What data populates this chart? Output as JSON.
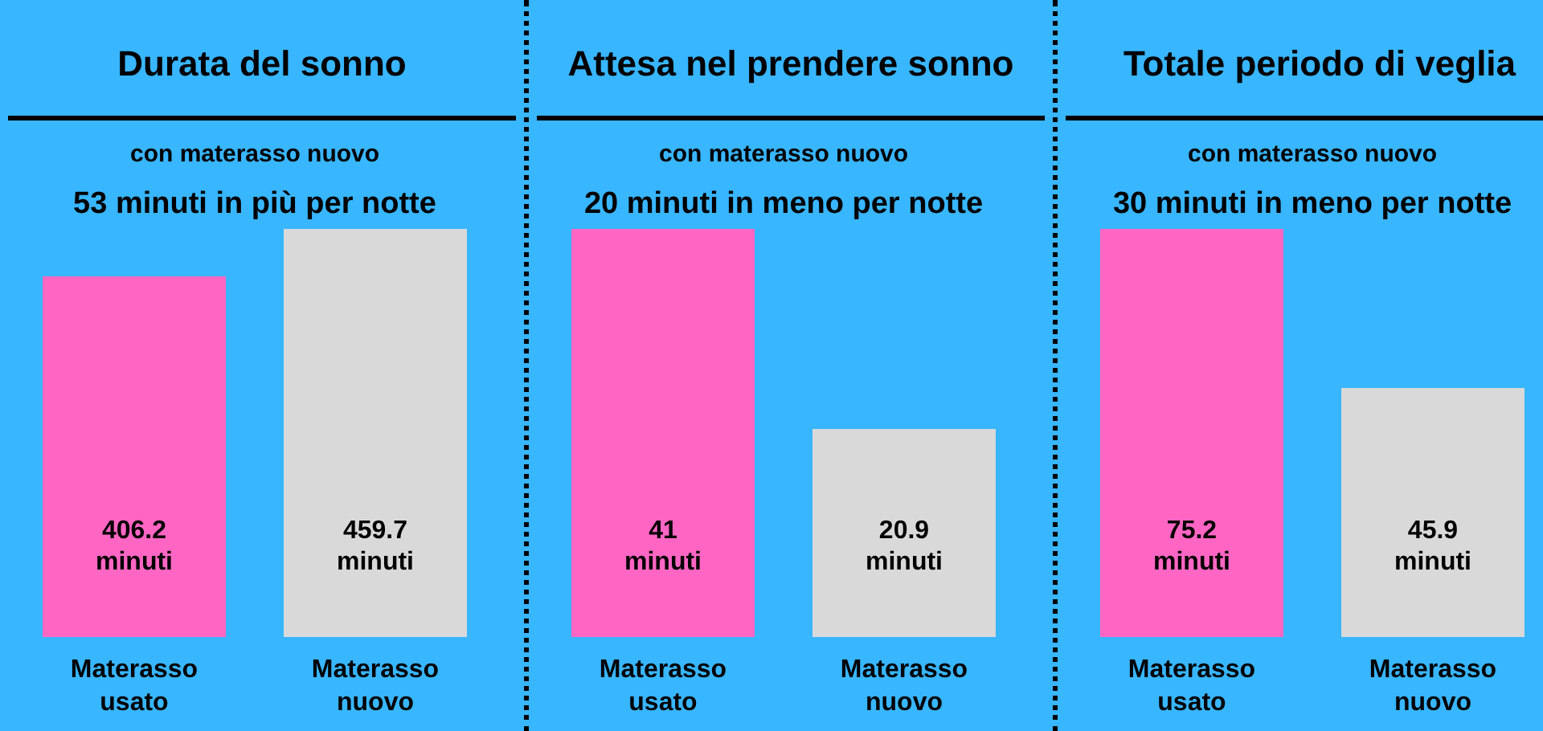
{
  "chart_data": [
    {
      "type": "bar",
      "title": "Durata del sonno",
      "subtitle": "con materasso nuovo",
      "annotations": [
        "53 minuti in più per notte"
      ],
      "categories": [
        "Materasso\nusato",
        "Materasso\nnuovo"
      ],
      "values": [
        406.2,
        459.7
      ],
      "colors": [
        "#ff66c4",
        "#d9d9d9"
      ],
      "value_labels": [
        "406.2\nminuti",
        "459.7\nminuti"
      ],
      "tick_labels": "x"
    },
    {
      "type": "bar",
      "title": "Attesa nel prendere sonno",
      "subtitle": "con materasso nuovo",
      "annotations": [
        "20 minuti in meno per notte"
      ],
      "categories": [
        "Materasso\nusato",
        "Materasso\nnuovo"
      ],
      "values": [
        41,
        20.9
      ],
      "colors": [
        "#ff66c4",
        "#d9d9d9"
      ],
      "value_labels": [
        "41\nminuti",
        "20.9\nminuti"
      ],
      "tick_labels": "x"
    },
    {
      "type": "bar",
      "title": "Totale periodo di veglia",
      "subtitle": "con materasso nuovo",
      "annotations": [
        "30 minuti in meno per notte"
      ],
      "categories": [
        "Materasso\nusato",
        "Materasso\nnuovo"
      ],
      "values": [
        75.2,
        45.9
      ],
      "colors": [
        "#ff66c4",
        "#d9d9d9"
      ],
      "value_labels": [
        "75.2\nminuti",
        "45.9\nminuti"
      ],
      "tick_labels": "x"
    }
  ]
}
